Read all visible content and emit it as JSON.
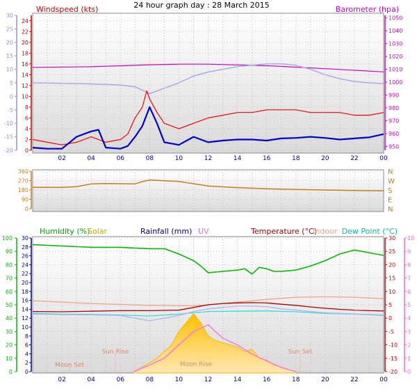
{
  "page_title": "24 hour graph day : 28 March 2015",
  "chart_data": [
    {
      "type": "line",
      "panel": "wind-baro",
      "left_axis_title": "Windspeed (kts)",
      "right_axis_title": "Barometer (hpa)",
      "x_ticks": [
        "02",
        "04",
        "06",
        "08",
        "10",
        "12",
        "14",
        "16",
        "18",
        "20",
        "22",
        "00"
      ],
      "x_range_hours": [
        0,
        24
      ],
      "y_outer_left_ticks": [
        "-20",
        "-15",
        "-10",
        "-5",
        "0",
        "5",
        "10",
        "15",
        "20",
        "25",
        "30"
      ],
      "y_outer_left_range": [
        -20,
        30
      ],
      "y_left_ticks": [
        "0",
        "2",
        "4",
        "6",
        "8",
        "10",
        "12",
        "14",
        "16",
        "18",
        "20",
        "22",
        "24"
      ],
      "y_left_range": [
        0,
        25
      ],
      "y_right_ticks": [
        "950",
        "960",
        "970",
        "980",
        "990",
        "1000",
        "1010",
        "1020",
        "1030",
        "1040",
        "1050"
      ],
      "y_right_range": [
        947,
        1052
      ],
      "grid": true,
      "series": [
        {
          "name": "",
          "axis": "right",
          "color": "#cc00cc",
          "x": [
            0,
            4,
            8,
            10,
            12,
            16,
            20,
            24
          ],
          "y": [
            1011.5,
            1012,
            1013.5,
            1014,
            1014,
            1012.8,
            1010.5,
            1008
          ]
        },
        {
          "name": "",
          "axis": "outer-left",
          "color": "#a9a9e8",
          "x": [
            0,
            2,
            4,
            6,
            7,
            8,
            9,
            10,
            11,
            12,
            13,
            14,
            15,
            16,
            17,
            18,
            19,
            20,
            21,
            22,
            23,
            24
          ],
          "y": [
            5,
            4.8,
            4.6,
            4.2,
            3.5,
            1,
            3,
            5,
            7.5,
            9,
            10,
            11,
            11.5,
            12,
            12,
            11.5,
            10,
            8,
            6.5,
            5.5,
            5,
            4.7
          ]
        },
        {
          "name": "",
          "axis": "left",
          "color": "#ff0000",
          "x": [
            0,
            1,
            2,
            3,
            4,
            5,
            6,
            6.5,
            7,
            7.5,
            7.8,
            8,
            8.5,
            9,
            10,
            11,
            12,
            13,
            14,
            15,
            16,
            17,
            18,
            19,
            20,
            21,
            22,
            23,
            24
          ],
          "y": [
            2,
            1.5,
            1,
            1.5,
            2.5,
            1.5,
            2,
            3,
            6,
            8,
            11,
            9.5,
            7,
            5,
            4,
            5,
            6,
            6.5,
            7,
            7,
            7.5,
            7.5,
            7.5,
            7,
            7,
            7,
            6.5,
            6.5,
            7
          ]
        },
        {
          "name": "",
          "axis": "left",
          "color": "#0000cc",
          "x": [
            0,
            1,
            2,
            3,
            4,
            4.5,
            5,
            6,
            6.5,
            7,
            7.5,
            8,
            8.5,
            9,
            10,
            11,
            12,
            13,
            14,
            15,
            16,
            17,
            18,
            19,
            20,
            21,
            22,
            23,
            24
          ],
          "y": [
            0.5,
            0.3,
            0.3,
            2.5,
            3.5,
            3.8,
            0.5,
            0.3,
            0.8,
            2.5,
            4.5,
            8,
            5,
            1.5,
            1,
            2.5,
            1.5,
            1.8,
            2,
            2,
            1.8,
            2.2,
            2.3,
            2.5,
            2.3,
            2,
            2.2,
            2.4,
            3
          ]
        }
      ]
    },
    {
      "type": "line",
      "panel": "wind-direction",
      "y_left_ticks": [
        "0",
        "90",
        "180",
        "270",
        "360"
      ],
      "y_range": [
        0,
        360
      ],
      "y_right_ticks": [
        "N",
        "W",
        "S",
        "E",
        "N"
      ],
      "grid": true,
      "series": [
        {
          "name": "",
          "color": "#c87d18",
          "x": [
            0,
            2,
            3,
            3.5,
            4,
            5,
            6,
            7,
            7.5,
            8,
            9,
            10,
            11,
            12,
            13,
            14,
            16,
            18,
            20,
            22,
            24
          ],
          "y": [
            205,
            205,
            212,
            225,
            238,
            242,
            240,
            238,
            260,
            276,
            268,
            262,
            240,
            218,
            210,
            203,
            192,
            185,
            180,
            175,
            172
          ]
        }
      ]
    },
    {
      "type": "line",
      "panel": "temp-humidity",
      "legend": [
        "Humidity (%)",
        "Solar",
        "Rainfall (mm)",
        "UV",
        "Temperature (°C)",
        "Indoor",
        "Dew Point (°C)"
      ],
      "y_humidity_ticks": [
        "0",
        "10",
        "20",
        "30",
        "40",
        "50",
        "60",
        "70",
        "80",
        "90",
        "100"
      ],
      "y_humidity_range": [
        0,
        100
      ],
      "y_rain_ticks": [
        "0",
        "2",
        "4",
        "6",
        "8",
        "10",
        "12",
        "14",
        "16",
        "18",
        "20",
        "22",
        "24",
        "26",
        "28",
        "30"
      ],
      "y_rain_range": [
        0,
        30
      ],
      "y_temp_ticks": [
        "-20",
        "-15",
        "-10",
        "-5",
        "0",
        "5",
        "10",
        "15",
        "20",
        "25",
        "30"
      ],
      "y_temp_range": [
        -20,
        30
      ],
      "y_uv_ticks": [
        "0",
        "1",
        "2",
        "3",
        "4",
        "5",
        "6",
        "7",
        "8",
        "9",
        "10"
      ],
      "y_uv_range": [
        0,
        10
      ],
      "annotations": [
        "Moon Set",
        "Sun Rise",
        "Moon Rise",
        "Sun Set"
      ],
      "grid": true,
      "series": [
        {
          "name": "Humidity (%)",
          "axis": "humidity",
          "color": "#00bb00",
          "x": [
            0,
            2,
            4,
            6,
            8,
            9,
            10,
            11,
            11.5,
            12,
            13,
            14,
            14.5,
            15,
            15.5,
            16,
            16.5,
            17,
            18,
            19,
            20,
            21,
            22,
            23,
            24
          ],
          "y": [
            95,
            94,
            93,
            93,
            92,
            92,
            88,
            83,
            79,
            74,
            75,
            76,
            77,
            73,
            78,
            77,
            75,
            75,
            76,
            79,
            83,
            88,
            91,
            89,
            87
          ]
        },
        {
          "name": "Indoor",
          "axis": "temp",
          "color": "#f0a58a",
          "x": [
            0,
            4,
            8,
            11,
            12,
            14,
            16,
            18,
            20,
            22,
            24
          ],
          "y": [
            6.5,
            5.5,
            4.8,
            4.6,
            5,
            6,
            7,
            7.8,
            8,
            7.8,
            7.3
          ]
        },
        {
          "name": "Temperature (°C)",
          "axis": "temp",
          "color": "#aa0000",
          "x": [
            0,
            2,
            4,
            6,
            8,
            10,
            11,
            12,
            13,
            14,
            15,
            16,
            17,
            18,
            19,
            20,
            21,
            22,
            23,
            24
          ],
          "y": [
            2.5,
            2.4,
            2.6,
            2.8,
            2.8,
            3,
            4,
            5,
            5.5,
            5.7,
            5.8,
            5.7,
            5.2,
            4.8,
            4.2,
            3.7,
            3.3,
            3,
            2.8,
            2.7
          ]
        },
        {
          "name": "Dew Point (°C)",
          "axis": "temp",
          "color": "#33dddd",
          "x": [
            0,
            2,
            4,
            6,
            8,
            10,
            12,
            14,
            16,
            18,
            20,
            22,
            24
          ],
          "y": [
            1.8,
            1.5,
            1.4,
            1.2,
            0.8,
            1.5,
            2.5,
            2.6,
            2.7,
            2.4,
            1.8,
            1.5,
            1
          ]
        },
        {
          "name": "",
          "axis": "temp",
          "color": "#b3b3f0",
          "x": [
            0,
            2,
            4,
            6,
            7,
            8,
            9,
            10,
            11,
            12,
            13,
            14,
            15,
            16,
            17,
            18,
            20,
            22,
            24
          ],
          "y": [
            1.5,
            1.3,
            1.2,
            1,
            0,
            -1,
            0,
            1,
            2.5,
            3.5,
            4,
            4.5,
            4.5,
            4.3,
            3.5,
            3,
            2,
            1.6,
            1.2
          ]
        },
        {
          "name": "UV",
          "axis": "uv",
          "color": "#ff77dd",
          "x": [
            6.9,
            8,
            9,
            10,
            11,
            12,
            13,
            14,
            15,
            16,
            17,
            18
          ],
          "y": [
            0,
            0.5,
            1,
            2,
            3,
            3.5,
            2.5,
            2,
            1.3,
            0.8,
            0.3,
            0
          ]
        },
        {
          "name": "Solar",
          "axis": "rain",
          "color": "#ffcc66",
          "x": [
            6.9,
            7.5,
            8,
            8.5,
            9,
            9.5,
            10,
            10.5,
            11,
            11.5,
            12,
            12.5,
            13,
            13.5,
            14,
            14.5,
            15,
            15.5,
            16,
            16.5,
            17,
            17.5,
            18
          ],
          "y": [
            0,
            1,
            2,
            3,
            4.5,
            6,
            9,
            11,
            13,
            11,
            8,
            7,
            6.5,
            6,
            5.5,
            4.5,
            5,
            3,
            2.5,
            1.5,
            1,
            0.5,
            0
          ]
        }
      ]
    }
  ]
}
